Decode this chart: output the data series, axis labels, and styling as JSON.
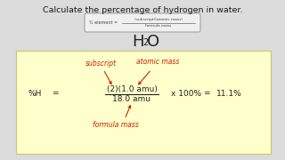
{
  "title": "Calculate the percentage of hydrogen in water.",
  "title_fontsize": 6.8,
  "bg_color": "#dcdcdc",
  "formula_box_bg": "#f0f0f0",
  "formula_box_text_top": "(subscript)(atomic mass)",
  "formula_box_text_bot": "formula mass",
  "formula_box_label": "% element =",
  "h2o_main": "H",
  "h2o_sub": "2",
  "h2o_end": "O",
  "yellow_box_bg": "#ffffcc",
  "yellow_box_border": "#c8c878",
  "label_subscript": "subscript",
  "label_atomic": "atomic mass",
  "label_formula": "formula mass",
  "label_color": "#cc2200",
  "eq_pct_h": "%H",
  "eq_equals": "=",
  "eq_numerator": "(2)(1.0 amu)",
  "eq_denominator": "18.0 amu",
  "eq_right": "x 100%",
  "eq_eq2": "=",
  "eq_result": "11.1%",
  "eq_color": "#222222",
  "fraction_color": "#222222"
}
